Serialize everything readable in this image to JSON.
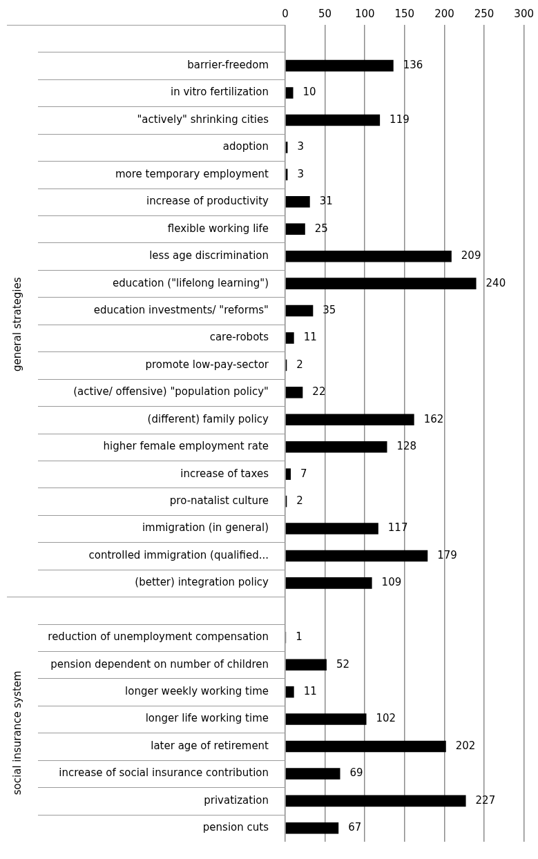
{
  "chart_data": {
    "type": "bar",
    "orientation": "horizontal",
    "categories": [
      null,
      "barrier-freedom",
      "in vitro fertilization",
      "\"actively\" shrinking cities",
      "adoption",
      "more temporary employment",
      "increase of productivity",
      "flexible working life",
      "less age discrimination",
      "education (\"lifelong learning\")",
      "education investments/ \"reforms\"",
      "care-robots",
      "promote low-pay-sector",
      "(active/ offensive) \"population policy\"",
      "(different) family policy",
      "higher female employment rate",
      "increase of taxes",
      "pro-natalist culture",
      "immigration (in general)",
      "controlled immigration (qualified...",
      "(better) integration policy",
      null,
      "reduction of unemployment compensation",
      "pension dependent on number of children",
      "longer weekly working time",
      "longer life working time",
      "later age of retirement",
      "increase of social insurance contribution",
      "privatization",
      "pension cuts"
    ],
    "values": [
      null,
      136,
      10,
      119,
      3,
      3,
      31,
      25,
      209,
      240,
      35,
      11,
      2,
      22,
      162,
      128,
      7,
      2,
      117,
      179,
      109,
      null,
      1,
      52,
      11,
      102,
      202,
      69,
      227,
      67
    ],
    "color": "#000000",
    "xlim": [
      0,
      300
    ],
    "xticks": [
      0,
      50,
      100,
      150,
      200,
      250,
      300
    ],
    "grid": "x",
    "legend": false,
    "data_labels": true,
    "annotations": [
      "general strategies",
      "social insurance system"
    ]
  }
}
